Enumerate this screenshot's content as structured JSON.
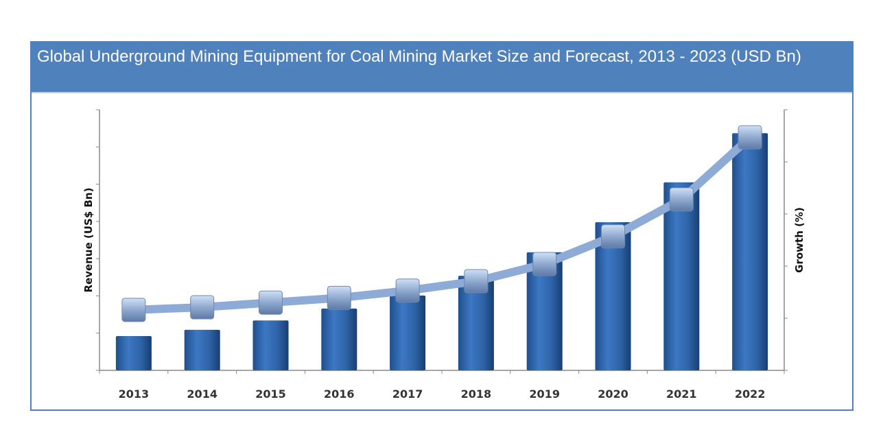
{
  "chart_data": {
    "type": "bar+line",
    "title": "Global Underground Mining Equipment for Coal Mining Market Size and Forecast, 2013 - 2023 (USD Bn)",
    "xlabel": "",
    "ylabel": "Revenue (US$ Bn)",
    "y2label": "Growth (%)",
    "categories": [
      "2013",
      "2014",
      "2015",
      "2016",
      "2017",
      "2018",
      "2019",
      "2020",
      "2021",
      "2022"
    ],
    "series": [
      {
        "type": "bar",
        "axis": "left",
        "values": [
          0.92,
          1.09,
          1.34,
          1.66,
          2.01,
          2.54,
          3.17,
          3.98,
          5.05,
          6.37
        ]
      },
      {
        "type": "line",
        "axis": "right",
        "values": [
          1.16,
          1.21,
          1.3,
          1.39,
          1.53,
          1.71,
          2.04,
          2.57,
          3.28,
          4.47
        ]
      }
    ],
    "ylim": [
      0,
      7
    ],
    "y2lim": [
      0,
      5
    ],
    "y_tick_count": 8,
    "y2_tick_count": 6,
    "tick_labels_shown": false,
    "grid": false,
    "legend": "none",
    "colors": {
      "bar": "#2e63a6",
      "line": "#8eaad6",
      "marker": "#8fa9cf",
      "title_bar": "#4f81bd"
    }
  }
}
